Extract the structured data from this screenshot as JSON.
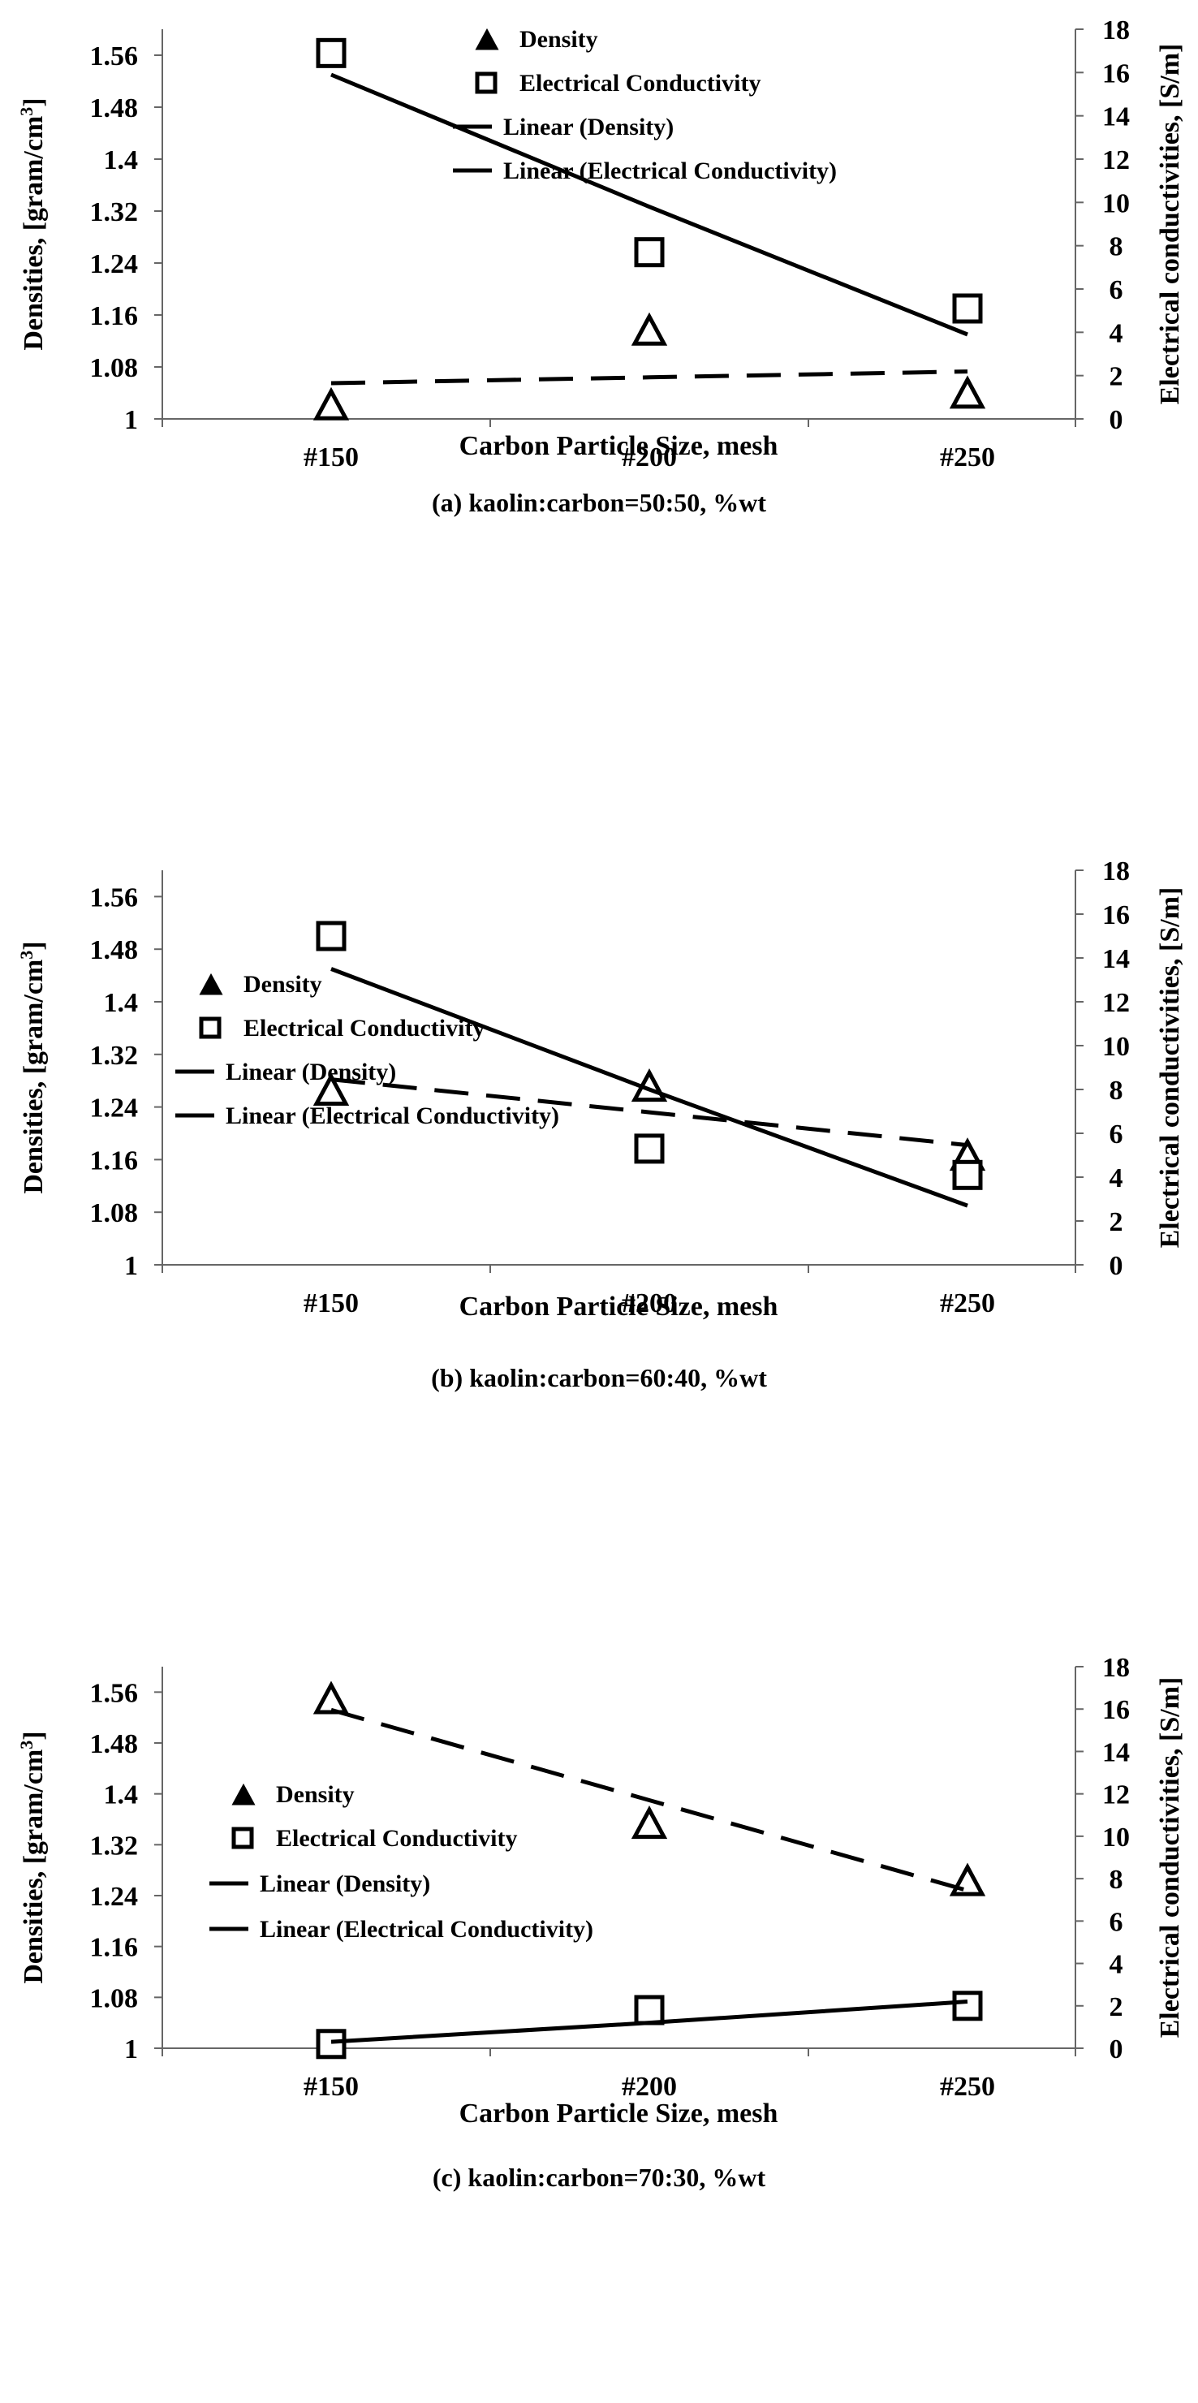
{
  "chart_data": [
    {
      "type": "scatter",
      "caption": "(a) kaolin:carbon=50:50, %wt",
      "categories": [
        "#150",
        "#200",
        "#250"
      ],
      "xlabel": "Carbon Particle Size, mesh",
      "ylabel_left": "Densities, [gram/cm",
      "ylabel_left_sup": "3",
      "ylabel_left_end": "]",
      "ylabel_right": "Electrical conductivities, [S/m]",
      "ylim_left": [
        1,
        1.6
      ],
      "yticks_left": [
        "1",
        "1.08",
        "1.16",
        "1.24",
        "1.32",
        "1.4",
        "1.48",
        "1.56"
      ],
      "ylim_right": [
        0,
        18
      ],
      "yticks_right": [
        "0",
        "2",
        "4",
        "6",
        "8",
        "10",
        "12",
        "14",
        "16",
        "18"
      ],
      "legend_position": "top-right",
      "series": [
        {
          "name": "Density",
          "axis": "left",
          "marker": "triangle",
          "values": [
            1.02,
            1.135,
            1.038
          ]
        },
        {
          "name": "Electrical Conductivity",
          "axis": "right",
          "marker": "square",
          "values": [
            16.9,
            7.7,
            5.1
          ]
        },
        {
          "name": "Linear (Density)",
          "axis": "left",
          "style": "dashed",
          "values": [
            1.055,
            1.064,
            1.073
          ]
        },
        {
          "name": "Linear (Electrical Conductivity)",
          "axis": "right",
          "style": "solid",
          "values": [
            15.9,
            9.8,
            3.9
          ]
        }
      ]
    },
    {
      "type": "scatter",
      "caption": "(b) kaolin:carbon=60:40, %wt",
      "categories": [
        "#150",
        "#200",
        "#250"
      ],
      "xlabel": "Carbon Particle Size, mesh",
      "ylabel_left": "Densities, [gram/cm",
      "ylabel_left_sup": "3",
      "ylabel_left_end": "]",
      "ylabel_right": "Electrical conductivities, [S/m]",
      "ylim_left": [
        1,
        1.6
      ],
      "yticks_left": [
        "1",
        "1.08",
        "1.16",
        "1.24",
        "1.32",
        "1.4",
        "1.48",
        "1.56"
      ],
      "ylim_right": [
        0,
        18
      ],
      "yticks_right": [
        "0",
        "2",
        "4",
        "6",
        "8",
        "10",
        "12",
        "14",
        "16",
        "18"
      ],
      "legend_position": "bottom-left",
      "series": [
        {
          "name": "Density",
          "axis": "left",
          "marker": "triangle",
          "values": [
            1.264,
            1.27,
            1.165
          ]
        },
        {
          "name": "Electrical Conductivity",
          "axis": "right",
          "marker": "square",
          "values": [
            15.0,
            5.3,
            4.1
          ]
        },
        {
          "name": "Linear (Density)",
          "axis": "left",
          "style": "dashed",
          "values": [
            1.282,
            1.232,
            1.182
          ]
        },
        {
          "name": "Linear (Electrical Conductivity)",
          "axis": "right",
          "style": "solid",
          "values": [
            13.5,
            8.0,
            2.7
          ]
        }
      ]
    },
    {
      "type": "scatter",
      "caption": "(c) kaolin:carbon=70:30, %wt",
      "categories": [
        "#150",
        "#200",
        "#250"
      ],
      "xlabel": "Carbon Particle Size, mesh",
      "ylabel_left": "Densities, [gram/cm",
      "ylabel_left_sup": "3",
      "ylabel_left_end": "]",
      "ylabel_right": "Electrical conductivities, [S/m]",
      "ylim_left": [
        1,
        1.6
      ],
      "yticks_left": [
        "1",
        "1.08",
        "1.16",
        "1.24",
        "1.32",
        "1.4",
        "1.48",
        "1.56"
      ],
      "ylim_right": [
        0,
        18
      ],
      "yticks_right": [
        "0",
        "2",
        "4",
        "6",
        "8",
        "10",
        "12",
        "14",
        "16",
        "18"
      ],
      "legend_position": "middle-left",
      "series": [
        {
          "name": "Density",
          "axis": "left",
          "marker": "triangle",
          "values": [
            1.548,
            1.352,
            1.262
          ]
        },
        {
          "name": "Electrical Conductivity",
          "axis": "right",
          "marker": "square",
          "values": [
            0.2,
            1.8,
            2.0
          ]
        },
        {
          "name": "Linear (Density)",
          "axis": "left",
          "style": "dashed",
          "values": [
            1.532,
            1.39,
            1.248
          ]
        },
        {
          "name": "Linear (Electrical Conductivity)",
          "axis": "right",
          "style": "solid",
          "values": [
            0.3,
            1.2,
            2.2
          ]
        }
      ]
    }
  ]
}
